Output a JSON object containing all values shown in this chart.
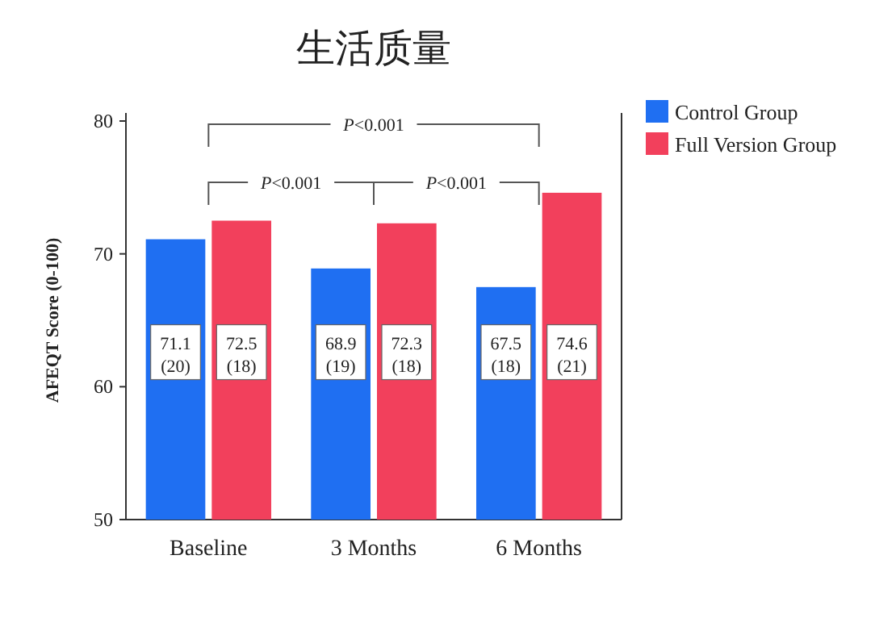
{
  "chart_data": {
    "type": "bar",
    "title": "生活质量",
    "ylabel": "AFEQT Score (0-100)",
    "categories": [
      "Baseline",
      "3 Months",
      "6 Months"
    ],
    "series": [
      {
        "name": "Control Group",
        "color": "#1f6ff2",
        "values": [
          71.1,
          68.9,
          67.5
        ],
        "value_labels": [
          "71.1 (20)",
          "68.9 (19)",
          "67.5 (18)"
        ]
      },
      {
        "name": "Full Version Group",
        "color": "#f2405c",
        "values": [
          72.5,
          72.3,
          74.6
        ],
        "value_labels": [
          "72.5 (18)",
          "72.3 (18)",
          "74.6 (21)"
        ]
      }
    ],
    "ylim": [
      50,
      80
    ],
    "yticks": [
      50,
      60,
      70,
      80
    ],
    "grid": false,
    "legend": "top right",
    "annotations": [
      "P<0.001",
      "P<0.001",
      "P<0.001"
    ]
  }
}
